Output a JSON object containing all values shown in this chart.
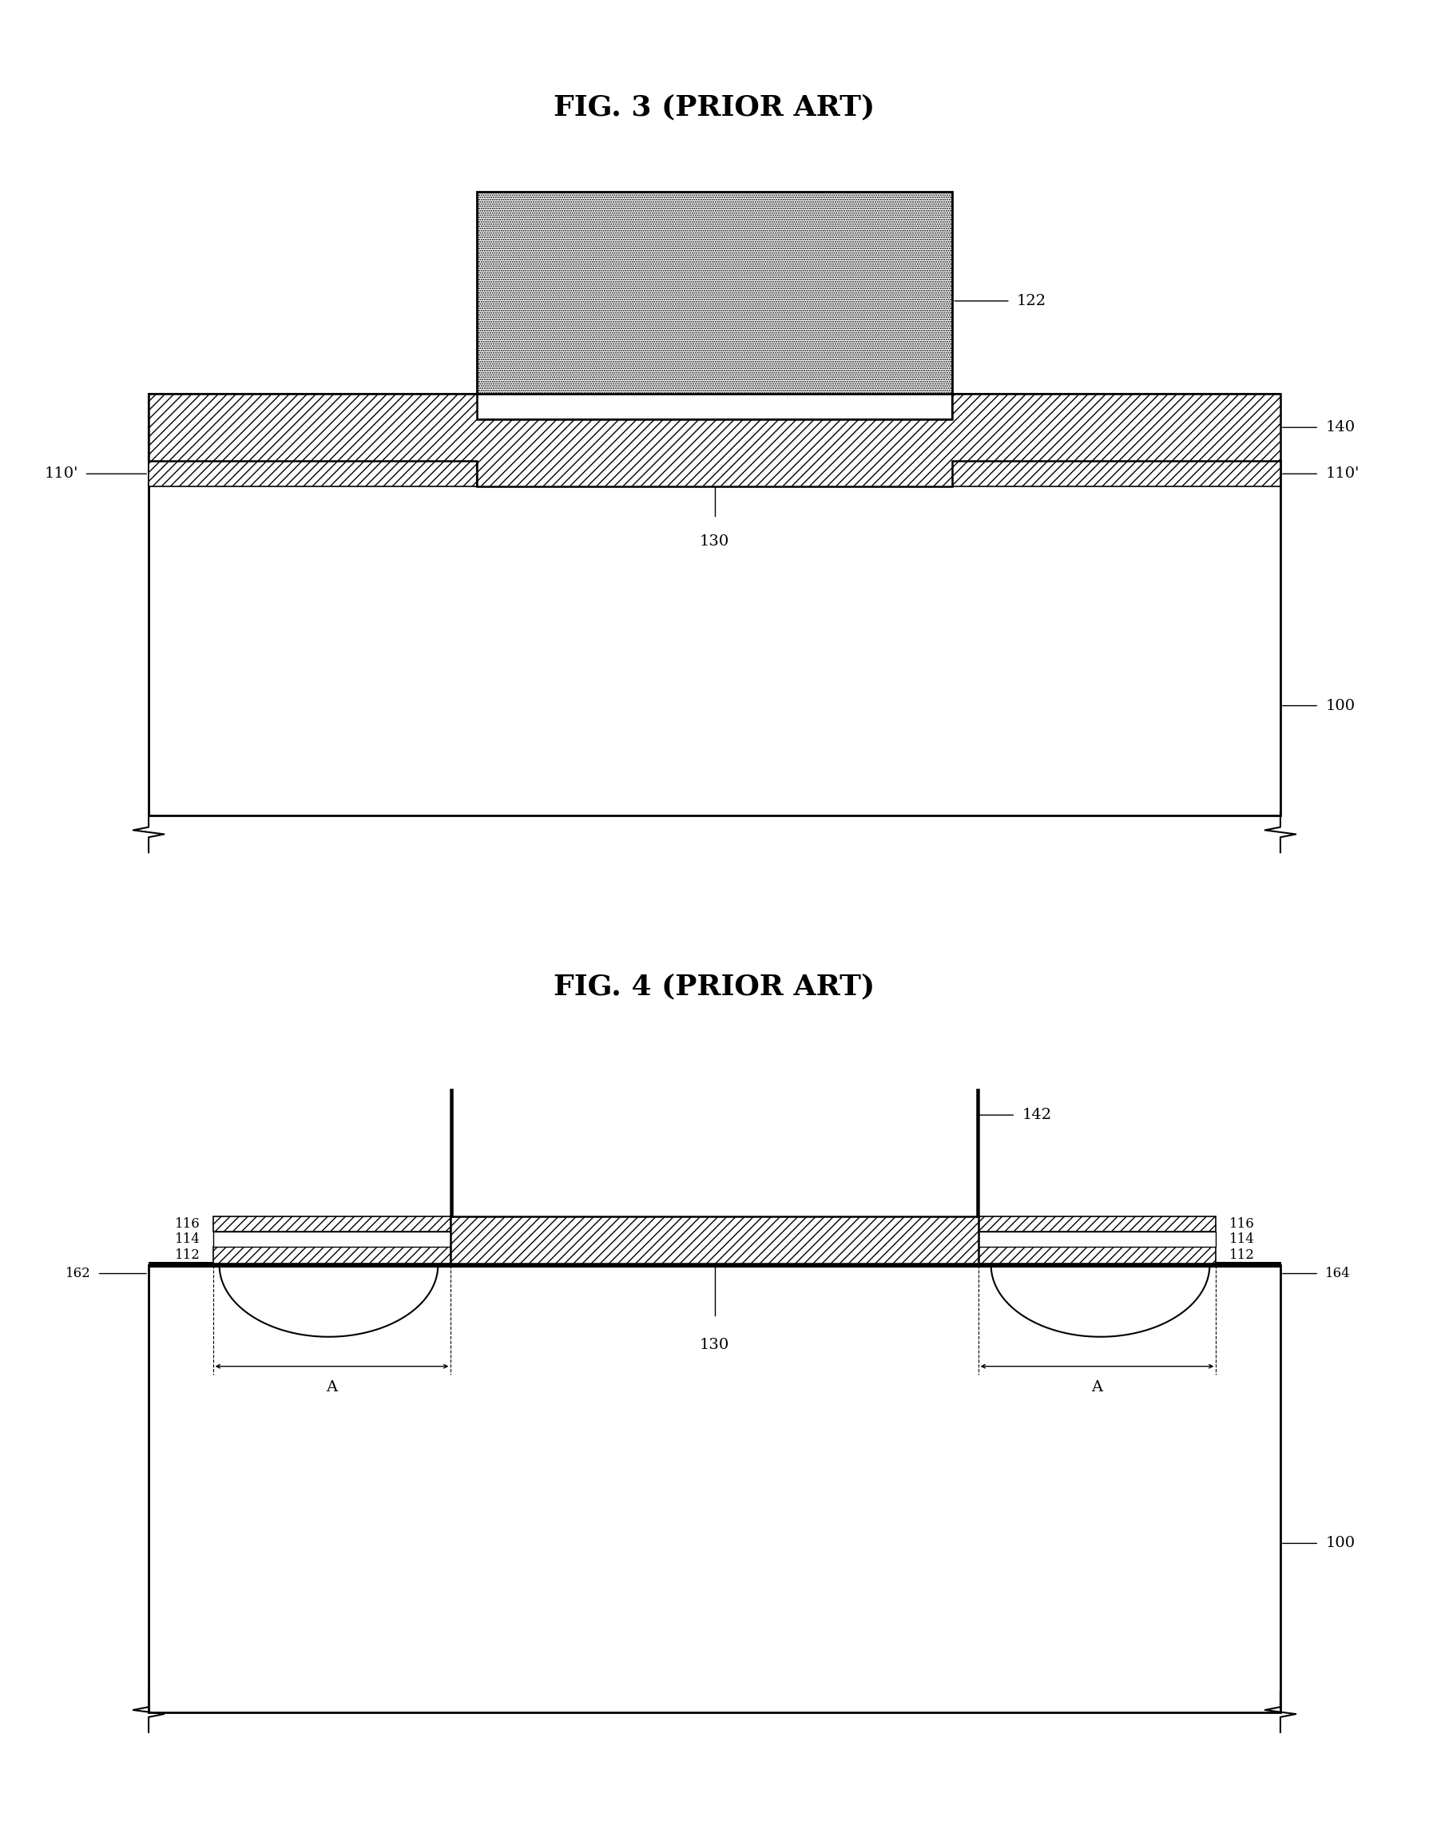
{
  "fig_width": 17.89,
  "fig_height": 22.95,
  "bg_color": "#ffffff",
  "title1": "FIG. 3 (PRIOR ART)",
  "title2": "FIG. 4 (PRIOR ART)",
  "label_fontsize": 14,
  "title_fontsize": 26
}
